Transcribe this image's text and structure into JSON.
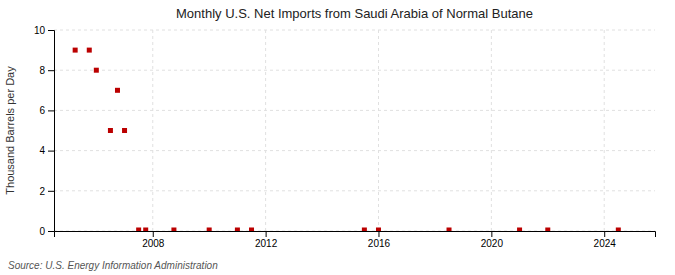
{
  "chart_data": {
    "type": "scatter",
    "title": "Monthly U.S. Net Imports from Saudi Arabia of Normal Butane",
    "ylabel": "Thousand Barrels per Day",
    "source": "Source: U.S. Energy Information Administration",
    "x": [
      2005.25,
      2005.75,
      2006.0,
      2006.5,
      2006.75,
      2007.0,
      2007.5,
      2007.75,
      2008.75,
      2010.0,
      2011.0,
      2011.5,
      2015.5,
      2016.0,
      2018.5,
      2021.0,
      2022.0,
      2024.5
    ],
    "values": [
      9.0,
      9.0,
      8.0,
      5.0,
      7.0,
      5.0,
      0.05,
      0.05,
      0.05,
      0.05,
      0.05,
      0.05,
      0.05,
      0.05,
      0.05,
      0.05,
      0.05,
      0.05
    ],
    "color": "#bb0000",
    "marker": "square",
    "xlim": [
      2004.5,
      2025.8
    ],
    "xticks": [
      2008,
      2012,
      2016,
      2020,
      2024
    ],
    "ylim": [
      0,
      10
    ],
    "yticks": [
      0,
      2,
      4,
      6,
      8,
      10
    ],
    "grid": true
  }
}
